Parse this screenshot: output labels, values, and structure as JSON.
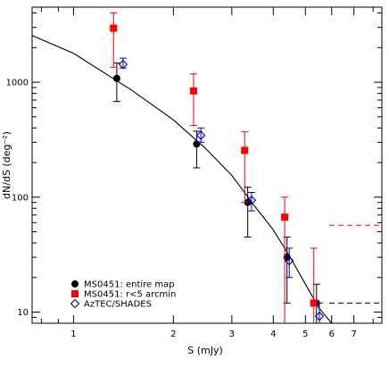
{
  "chart_data": {
    "type": "scatter",
    "xlabel": "S (mJy)",
    "ylabel": "dN/dS (deg⁻²)",
    "xscale": "log",
    "yscale": "log",
    "xlim": [
      0.75,
      8.5
    ],
    "ylim": [
      8,
      4500
    ],
    "x_ticks": [
      1,
      2,
      3,
      4,
      5,
      6,
      7
    ],
    "x_tick_labels": [
      "1",
      "2",
      "3",
      "4",
      "5",
      "6",
      "7"
    ],
    "y_ticks": [
      10,
      100,
      1000
    ],
    "y_tick_labels": [
      "10",
      "100",
      "1000"
    ],
    "legend_position": "bottom-left",
    "series": [
      {
        "name": "MS0451: entire map",
        "marker": "filled-circle",
        "color": "#000000",
        "points": [
          {
            "x": 1.35,
            "y": 1080,
            "y_low": 680,
            "y_high": 1470
          },
          {
            "x": 2.35,
            "y": 290,
            "y_low": 180,
            "y_high": 375
          },
          {
            "x": 3.35,
            "y": 90,
            "y_low": 45,
            "y_high": 122
          },
          {
            "x": 4.4,
            "y": 30,
            "y_low": 12,
            "y_high": 45
          },
          {
            "x": 5.4,
            "y": 12,
            "y_low": 4,
            "y_high": 17.5
          }
        ]
      },
      {
        "name": "MS0451: r<5 arcmin",
        "marker": "filled-square",
        "color": "#ff0000",
        "points": [
          {
            "x": 1.32,
            "y": 2950,
            "y_low": 1350,
            "y_high": 4000
          },
          {
            "x": 2.3,
            "y": 840,
            "y_low": 420,
            "y_high": 1180
          },
          {
            "x": 3.28,
            "y": 255,
            "y_low": 90,
            "y_high": 370
          },
          {
            "x": 4.33,
            "y": 67,
            "y_low": 4,
            "y_high": 100
          },
          {
            "x": 5.3,
            "y": 12,
            "y_low": 4,
            "y_high": 36
          }
        ]
      },
      {
        "name": "AzTEC/SHADES",
        "marker": "open-diamond",
        "color": "#0000cc",
        "points": [
          {
            "x": 1.41,
            "y": 1430,
            "y_low": 1330,
            "y_high": 1620
          },
          {
            "x": 2.42,
            "y": 345,
            "y_low": 300,
            "y_high": 400
          },
          {
            "x": 3.44,
            "y": 94,
            "y_low": 76,
            "y_high": 110
          },
          {
            "x": 4.47,
            "y": 28,
            "y_low": 20,
            "y_high": 36
          },
          {
            "x": 5.51,
            "y": 9.2,
            "y_low": 5.5,
            "y_high": 12
          }
        ]
      }
    ],
    "model_curve": {
      "color": "#000000",
      "points": [
        [
          0.75,
          2550
        ],
        [
          1.0,
          1780
        ],
        [
          1.5,
          850
        ],
        [
          2.0,
          470
        ],
        [
          2.5,
          265
        ],
        [
          3.0,
          155
        ],
        [
          3.5,
          85
        ],
        [
          4.0,
          52
        ],
        [
          4.5,
          30
        ],
        [
          5.0,
          17.5
        ],
        [
          5.5,
          10.8
        ],
        [
          6.0,
          6.5
        ]
      ]
    },
    "limit_lines": [
      {
        "color": "#ff0000",
        "y": 57,
        "x_start": 5.9,
        "x_end": 8.5
      },
      {
        "color": "#000000",
        "y": 12,
        "x_start": 5.9,
        "x_end": 8.5
      }
    ]
  }
}
